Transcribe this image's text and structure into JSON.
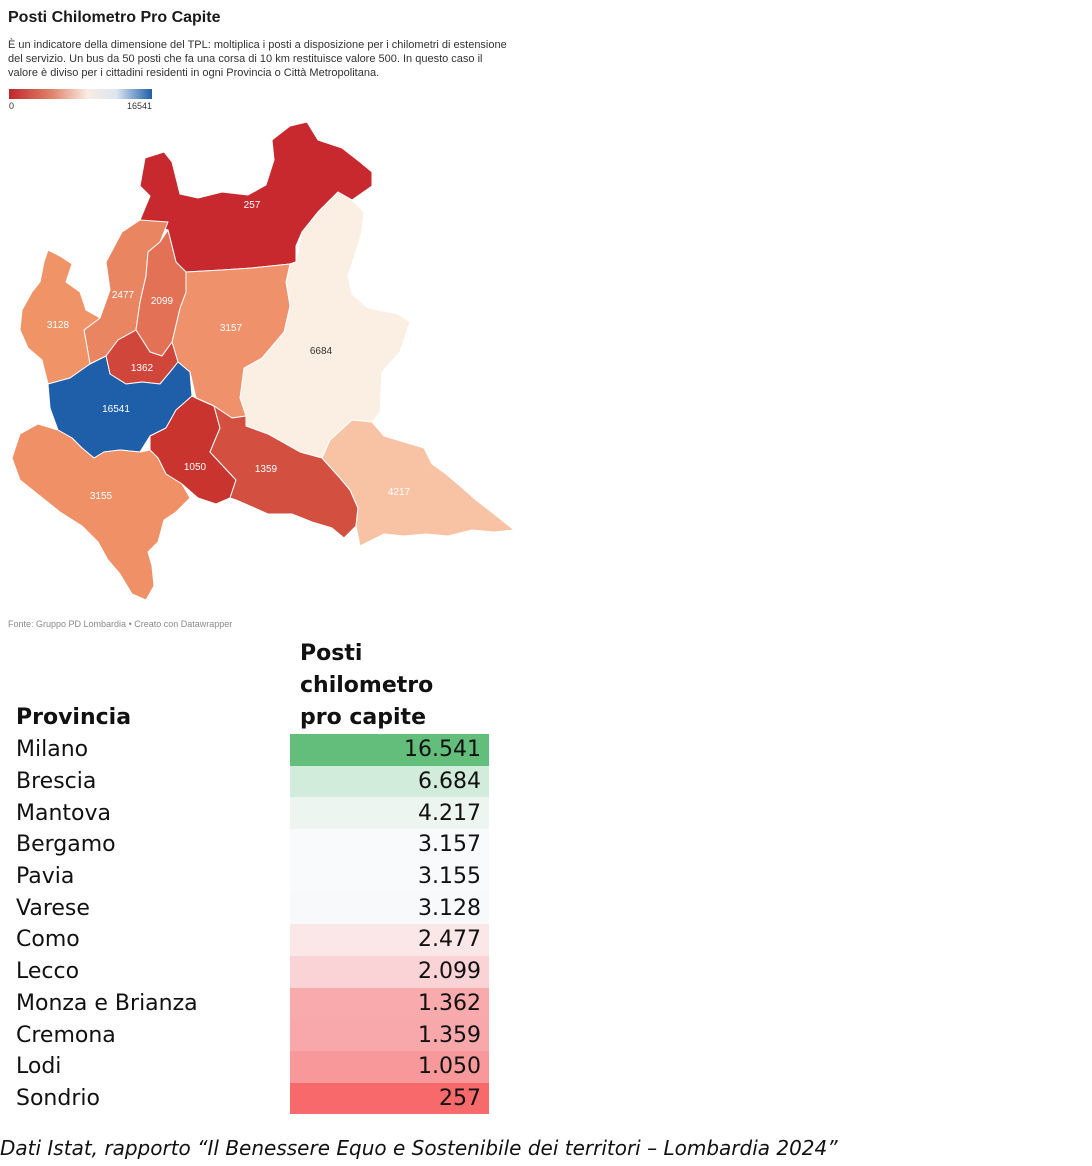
{
  "map": {
    "title": "Posti Chilometro Pro Capite",
    "description": "È un indicatore della dimensione del TPL: moltiplica i posti a disposizione per i chilometri di estensione del servizio. Un bus da 50 posti che fa una corsa di 10 km restituisce valore 500. In questo caso il valore è diviso per i cittadini residenti in ogni Provincia o Città Metropolitana.",
    "legend": {
      "min": "0",
      "max": "16541",
      "min_color": "#c0272d",
      "max_color": "#1f5fa9"
    },
    "regions": [
      {
        "label": "257",
        "color": "#c8292f"
      },
      {
        "label": "6684",
        "color": "#fbeee3"
      },
      {
        "label": "3157",
        "color": "#ef916a"
      },
      {
        "label": "2477",
        "color": "#ea8561"
      },
      {
        "label": "2099",
        "color": "#e37155"
      },
      {
        "label": "3128",
        "color": "#f09468"
      },
      {
        "label": "1362",
        "color": "#d0463b"
      },
      {
        "label": "16541",
        "color": "#1f5fa9"
      },
      {
        "label": "1050",
        "color": "#c9342f"
      },
      {
        "label": "1359",
        "color": "#d34f40"
      },
      {
        "label": "3155",
        "color": "#ef9066"
      },
      {
        "label": "4217",
        "color": "#f8c2a4"
      }
    ],
    "source": "Fonte: Gruppo PD Lombardia • Creato con Datawrapper"
  },
  "table": {
    "header_provincia": "Provincia",
    "header_valore_1": "Posti",
    "header_valore_2": "chilometro",
    "header_valore_3": "pro capite",
    "rows": [
      {
        "provincia": "Milano",
        "valore": "16.541",
        "color": "#63be7b"
      },
      {
        "provincia": "Brescia",
        "valore": "6.684",
        "color": "#d2ecdb"
      },
      {
        "provincia": "Mantova",
        "valore": "4.217",
        "color": "#edf5f1"
      },
      {
        "provincia": "Bergamo",
        "valore": "3.157",
        "color": "#f8fafb"
      },
      {
        "provincia": "Pavia",
        "valore": "3.155",
        "color": "#f8fafb"
      },
      {
        "provincia": "Varese",
        "valore": "3.128",
        "color": "#f8f9fb"
      },
      {
        "provincia": "Como",
        "valore": "2.477",
        "color": "#fbe6e8"
      },
      {
        "provincia": "Lecco",
        "valore": "2.099",
        "color": "#fad3d6"
      },
      {
        "provincia": "Monza e Brianza",
        "valore": "1.362",
        "color": "#f8aaad"
      },
      {
        "provincia": "Cremona",
        "valore": "1.359",
        "color": "#f8a8ab"
      },
      {
        "provincia": "Lodi",
        "valore": "1.050",
        "color": "#f8989b"
      },
      {
        "provincia": "Sondrio",
        "valore": "257",
        "color": "#f8696b"
      }
    ]
  },
  "footnote": "Dati Istat, rapporto “Il Benessere Equo e Sostenibile dei territori – Lombardia 2024”"
}
